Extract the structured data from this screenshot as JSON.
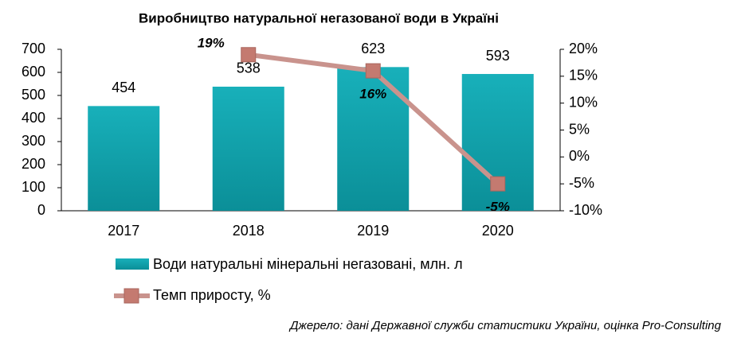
{
  "chart_data": {
    "type": "bar",
    "title": "Виробництво натуральної негазованої води в Україні",
    "categories": [
      "2017",
      "2018",
      "2019",
      "2020"
    ],
    "series": [
      {
        "name": "Води натуральні мінеральні негазовані, млн. л",
        "type": "bar",
        "color": "#12a3ad",
        "values": [
          454,
          538,
          623,
          593
        ]
      },
      {
        "name": "Темп приросту, %",
        "type": "line",
        "axis": "y2",
        "color": "#c9938d",
        "marker_color": "#c47a70",
        "values": [
          null,
          19,
          16,
          -5
        ],
        "value_labels": [
          null,
          "19%",
          "16%",
          "-5%"
        ]
      }
    ],
    "ylim": [
      0,
      700
    ],
    "yticks": [
      0,
      100,
      200,
      300,
      400,
      500,
      600,
      700
    ],
    "y2lim": [
      -10,
      20
    ],
    "y2ticks": [
      {
        "value": -10,
        "label": "-10%"
      },
      {
        "value": -5,
        "label": "-5%"
      },
      {
        "value": 0,
        "label": "0%"
      },
      {
        "value": 5,
        "label": "5%"
      },
      {
        "value": 10,
        "label": "10%"
      },
      {
        "value": 15,
        "label": "15%"
      },
      {
        "value": 20,
        "label": "20%"
      }
    ],
    "grid": false,
    "source": "Джерело: дані Державної служби статистики України, оцінка Pro-Consulting"
  }
}
